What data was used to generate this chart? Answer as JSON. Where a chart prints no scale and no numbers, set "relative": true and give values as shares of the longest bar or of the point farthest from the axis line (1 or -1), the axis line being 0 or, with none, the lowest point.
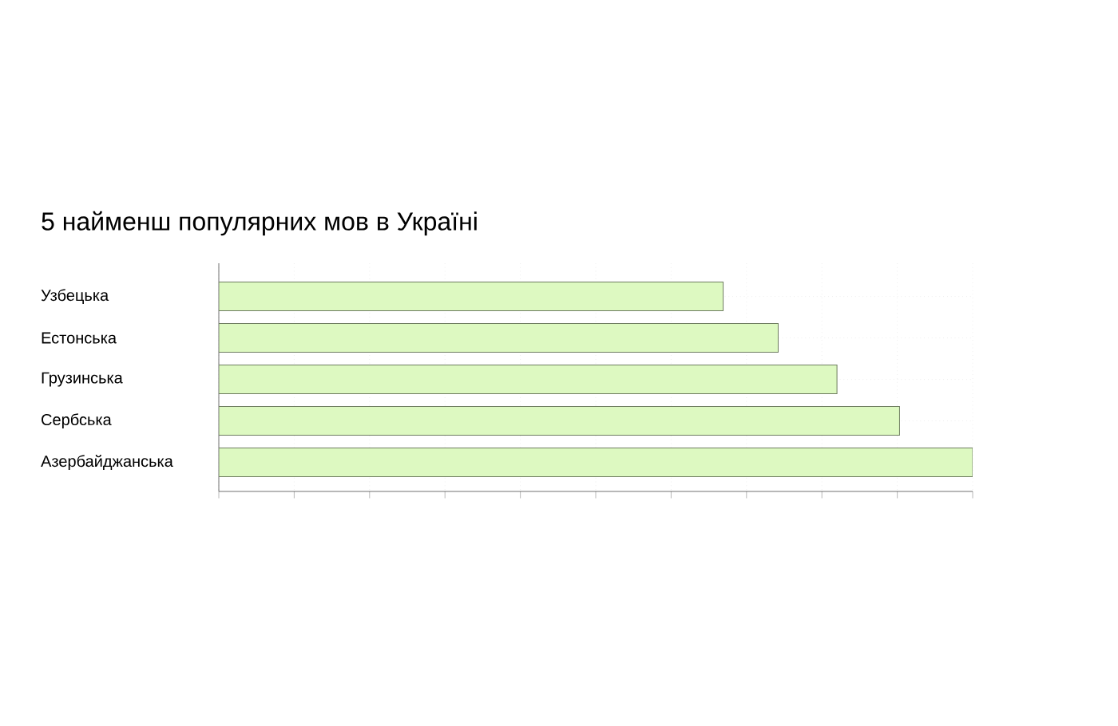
{
  "chart_data": {
    "type": "bar",
    "orientation": "horizontal",
    "relative": true,
    "title": "5 найменш популярних мов в Україні",
    "categories": [
      "Узбецька",
      "Естонська",
      "Грузинська",
      "Сербська",
      "Азербайджанська"
    ],
    "values": [
      0.669,
      0.742,
      0.82,
      0.903,
      1
    ],
    "color": "#ddf9c1",
    "grid": true
  }
}
